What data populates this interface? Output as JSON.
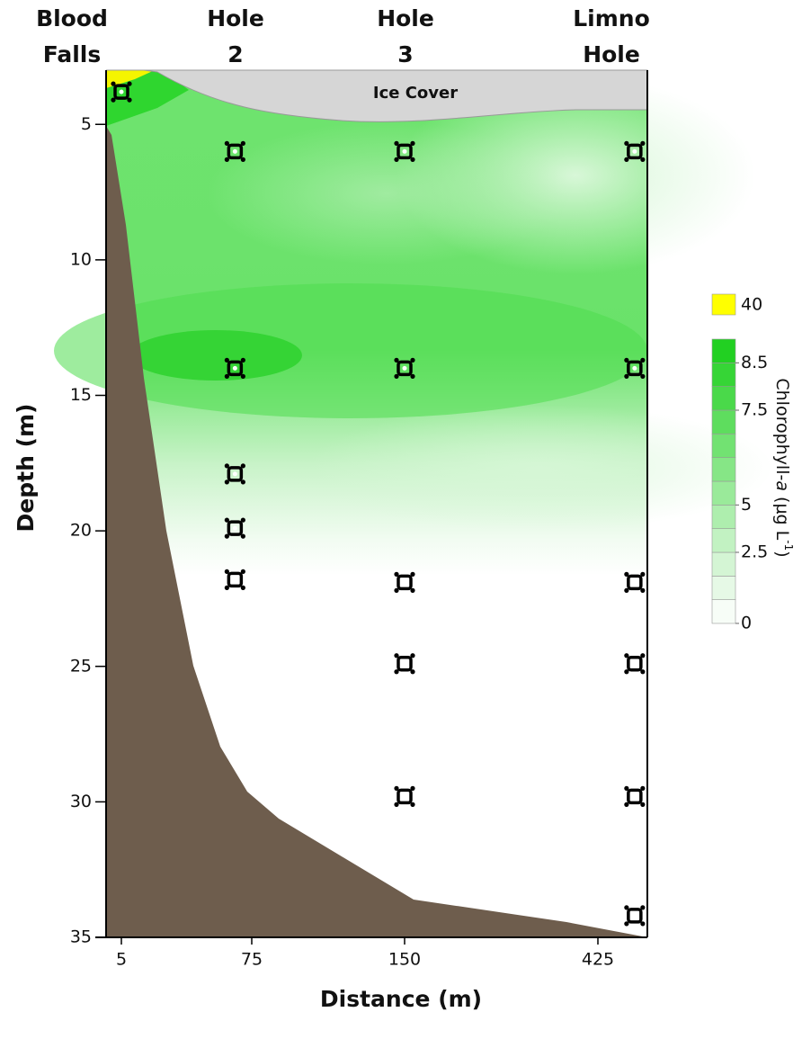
{
  "chart_data": {
    "type": "contour",
    "sites": [
      {
        "lines": [
          "Blood",
          "Falls"
        ]
      },
      {
        "lines": [
          "Hole",
          "2"
        ]
      },
      {
        "lines": [
          "Hole",
          "3"
        ]
      },
      {
        "lines": [
          "Limno",
          "Hole"
        ]
      }
    ],
    "annotation": "Ice Cover",
    "x_label": "Distance (m)",
    "y_label": "Depth (m)",
    "xlim": [
      -3,
      495
    ],
    "xticks": [
      5,
      75,
      150,
      425
    ],
    "ylim": [
      3,
      35
    ],
    "yticks": [
      5,
      10,
      15,
      20,
      25,
      30,
      35
    ],
    "y_inverted": true,
    "samples": {
      "x": [
        5,
        66,
        66,
        66,
        66,
        66,
        150,
        150,
        150,
        150,
        150,
        477,
        477,
        477,
        477,
        477,
        477
      ],
      "y": [
        3.8,
        6,
        14,
        17.9,
        19.9,
        21.8,
        6,
        14,
        21.9,
        24.9,
        29.8,
        6,
        14,
        21.9,
        24.9,
        29.8,
        34.2
      ],
      "color": "#000000"
    },
    "colorbar": {
      "label_parts": [
        "Chlorophyll-",
        "a",
        " (µg L",
        "-1",
        ")"
      ],
      "levels": [
        0,
        1,
        2,
        2.5,
        4,
        5,
        5.5,
        6,
        7,
        7.5,
        8,
        8.5,
        9
      ],
      "colors": [
        "#f7fdf7",
        "#e6f9e6",
        "#d4f5d4",
        "#c2f2c2",
        "#aeeeae",
        "#9aea9a",
        "#86e686",
        "#72e272",
        "#5edd5e",
        "#4ad94a",
        "#36d536",
        "#22d022"
      ],
      "ticks": [
        0,
        2.5,
        5,
        7.5,
        8.5
      ],
      "max_box": {
        "value": 40,
        "color": "#ffff00"
      }
    }
  }
}
